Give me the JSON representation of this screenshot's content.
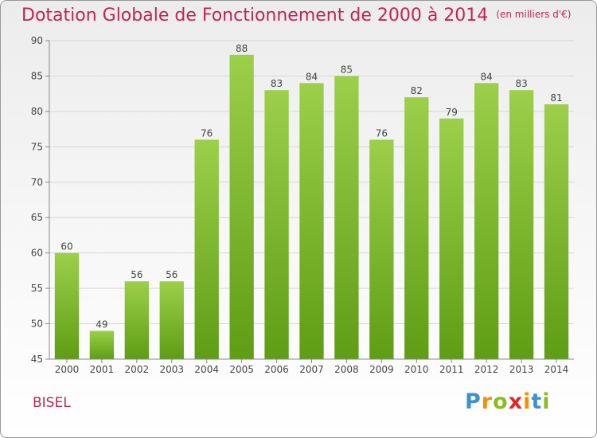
{
  "title": "Dotation Globale de Fonctionnement de 2000 à 2014",
  "unit": "(en milliers d'€)",
  "commune": "BISEL",
  "logo": {
    "p": "P",
    "r": "r",
    "o": "o",
    "x": "x",
    "i1": "i",
    "t": "t",
    "i2": "i"
  },
  "colors": {
    "bar_top": "#9ccf4a",
    "bar_bottom": "#5e9d14",
    "title": "#c0245c",
    "axis": "#888888"
  },
  "chart_data": {
    "type": "bar",
    "categories": [
      "2000",
      "2001",
      "2002",
      "2003",
      "2004",
      "2005",
      "2006",
      "2007",
      "2008",
      "2009",
      "2010",
      "2011",
      "2012",
      "2013",
      "2014"
    ],
    "values": [
      60,
      49,
      56,
      56,
      76,
      88,
      83,
      84,
      85,
      76,
      82,
      79,
      84,
      83,
      81
    ],
    "ylim": [
      45,
      90
    ],
    "yticks": [
      45,
      50,
      55,
      60,
      65,
      70,
      75,
      80,
      85,
      90
    ],
    "grid": true,
    "title": "Dotation Globale de Fonctionnement de 2000 à 2014",
    "xlabel": "",
    "ylabel": ""
  }
}
